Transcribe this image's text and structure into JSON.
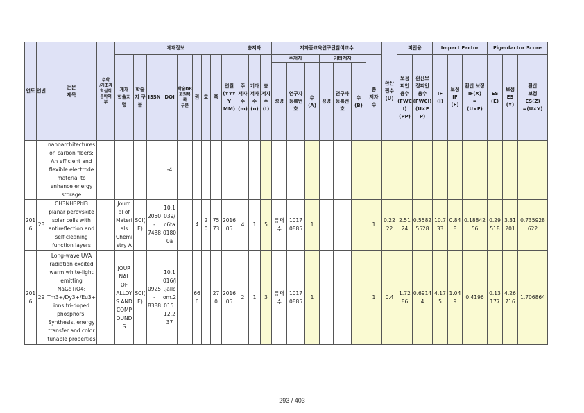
{
  "header": {
    "year": "연도",
    "serial": "연번",
    "title": "논문\n제목",
    "field": "수학\n/기초과\n학실적\n분야여\n부",
    "pub_info": "게재정보",
    "journal_name": "게재\n학술지\n명",
    "journal_class": "학술\n지 구\n분",
    "issn": "ISSN",
    "doi": "DOI",
    "database_class": "학술DB\n회원목록\n구분",
    "volume": "권",
    "issue": "호",
    "page": "쪽",
    "pub_date": "연월\n(YYYY\nMM)",
    "authors_group": "총저자",
    "main_authors": "주\n저자\n수\n(m)",
    "other_authors": "기타\n저자\n수\n(n)",
    "total_authors": "총\n저자\n수\n(t)",
    "participants_group": "저자중교육연구단참여교수",
    "main_author_sub": "주저자",
    "other_author_sub": "기타저자",
    "name_a": "성명",
    "research_no_a": "연구자\n등록번\n호",
    "count_a": "수\n(A)",
    "name_b": "성명",
    "research_no_b": "연구자\n등록번\n호",
    "count_b": "수\n(B)",
    "total_count": "총\n저자\n수",
    "converted_count": "환산\n편수\n(U)",
    "citation": "피인용",
    "fwci_corr": "보정\n피인\n용수\n(FWC\nI)\n(PP)",
    "fwci_conv": "환산보\n정피인\n용수\n(FWCI)\n(U×PP)",
    "impact_factor": "Impact Factor",
    "if": "IF\n(I)",
    "if_corr": "보정\nIF\n(F)",
    "if_conv": "환산 보정\nIF(X)\n=\n(U×F)",
    "eigen": "Eigenfactor Score",
    "es": "ES\n(E)",
    "es_corr": "보정\nES\n(Y)",
    "es_conv": "환산\n보정\nES(Z)\n=(U×Y)"
  },
  "rows": [
    {
      "year": "",
      "no": "",
      "title": "nanoarchitectures\non carbon fibers:\nAn efficient and\nflexible electrode\nmaterial to\nenhance energy\nstorage",
      "field": "",
      "journal": "",
      "jclass": "",
      "issn": "",
      "doi": "-4",
      "db": "",
      "vol": "",
      "issue": "",
      "page": "",
      "date": "",
      "m": "",
      "n": "",
      "t": "",
      "name_a": "",
      "reg_a": "",
      "a": "",
      "name_b": "",
      "reg_b": "",
      "b": "",
      "total": "",
      "u": "",
      "pp": "",
      "upp": "",
      "i": "",
      "f": "",
      "x": "",
      "e": "",
      "y": "",
      "z": ""
    },
    {
      "year": "201\n6",
      "no": "28",
      "title": "CH3NH3PbI3\nplanar perovskite\nsolar cells with\nantireflection and\nself-cleaning\nfunction layers",
      "field": "",
      "journal": "Journ\nal of\nMateri\nals\nChemi\nstry A",
      "jclass": "SCI(\nE)",
      "issn": "2050\n-\n7488",
      "doi": "10.1\n039/\nc6ta\n0180\n0a",
      "db": "",
      "vol": "4",
      "issue": "2\n0",
      "page": "75\n73",
      "date": "2016\n05",
      "m": "4",
      "n": "1",
      "t": "5",
      "name_a": "유재\n수",
      "reg_a": "1017\n0885",
      "a": "1",
      "name_b": "",
      "reg_b": "",
      "b": "",
      "total": "1",
      "u": "0.22\n22",
      "pp": "2.51\n24",
      "upp": "0.5582\n5528",
      "i": "10.7\n33",
      "f": "0.84\n8",
      "x": "0.18842\n56",
      "e": "0.29\n518",
      "y": "3.31\n201",
      "z": "0.735928\n622"
    },
    {
      "year": "201\n6",
      "no": "29",
      "title": "Long-wave UVA\nradiation excited\nwarm white-light\nemitting\nNaGdTiO4:\nTm3+/Dy3+/Eu3+\nions tri-doped\nphosphors:\nSynthesis, energy\ntransfer and color\ntunable properties",
      "field": "",
      "journal": "JOUR\nNAL\nOF\nALLOY\nS AND\nCOMP\nOUND\nS",
      "jclass": "SCI(\nE)",
      "issn": "0925\n-\n8388",
      "doi": "10.1\n016/j\n.jallc\nom.2\n015.\n12.2\n37",
      "db": "",
      "vol": "66\n6",
      "issue": "",
      "page": "27\n0",
      "date": "2016\n05",
      "m": "2",
      "n": "1",
      "t": "3",
      "name_a": "유재\n수",
      "reg_a": "1017\n0885",
      "a": "1",
      "name_b": "",
      "reg_b": "",
      "b": "",
      "total": "1",
      "u": "0.4",
      "pp": "1.72\n86",
      "upp": "0.6914\n4",
      "i": "4.17\n5",
      "f": "1.04\n9",
      "x": "0.4196",
      "e": "0.13\n177",
      "y": "4.26\n716",
      "z": "1.706864"
    }
  ],
  "footer": {
    "page": "293 / 403"
  }
}
